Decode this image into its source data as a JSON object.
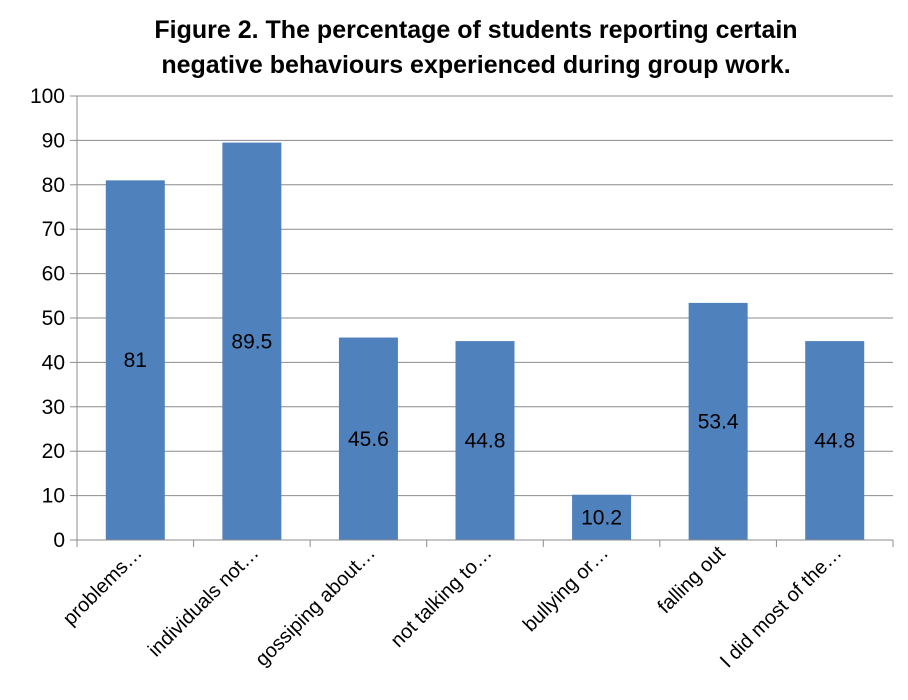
{
  "chart_data": {
    "type": "bar",
    "title_line1": "Figure 2. The percentage of students reporting certain",
    "title_line2": "negative behaviours experienced during group work.",
    "categories": [
      "problems…",
      "individuals not…",
      "gossiping about…",
      "not talking to…",
      "bullying or…",
      "falling out",
      "I did most of the…"
    ],
    "values": [
      81,
      89.5,
      45.6,
      44.8,
      10.2,
      53.4,
      44.8
    ],
    "data_labels": [
      "81",
      "89.5",
      "45.6",
      "44.8",
      "10.2",
      "53.4",
      "44.8"
    ],
    "ylim": [
      0,
      100
    ],
    "yticks": [
      "0",
      "10",
      "20",
      "30",
      "40",
      "50",
      "60",
      "70",
      "80",
      "90",
      "100"
    ],
    "grid": true,
    "legend": "none",
    "bar_color": "#4f81bd",
    "grid_color": "#8c8c8c",
    "xlabel": "",
    "ylabel": ""
  }
}
